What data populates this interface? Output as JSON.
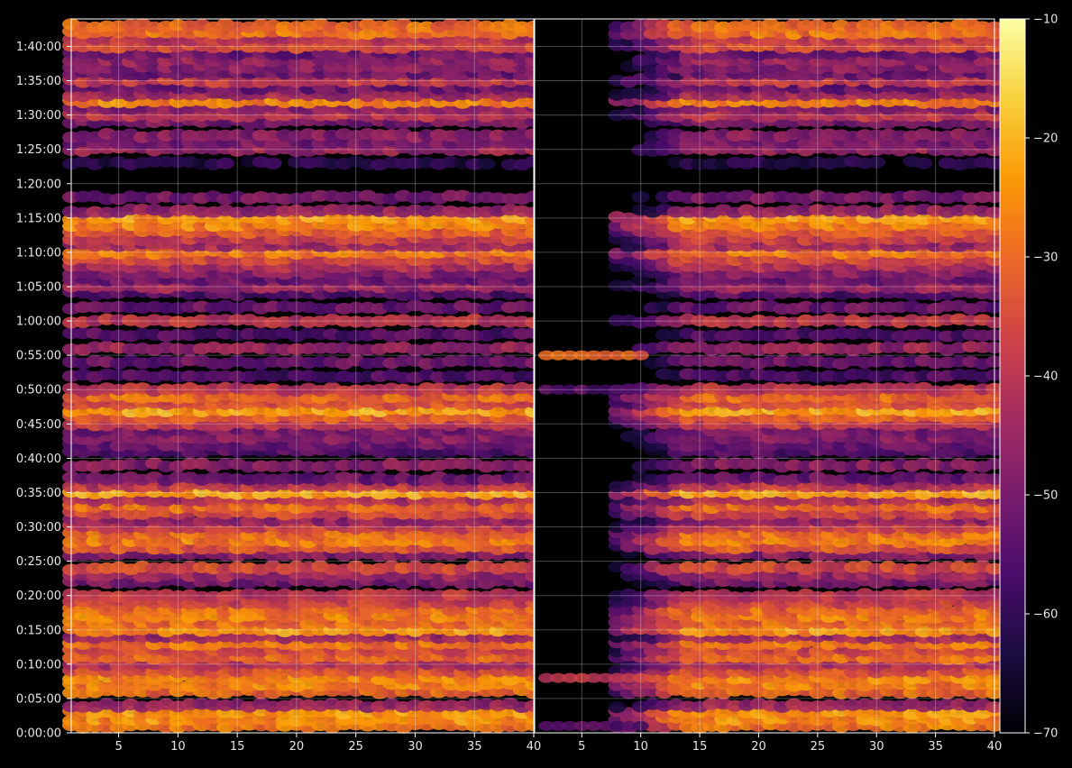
{
  "chart_data": {
    "type": "heatmap",
    "title": "",
    "xlabel": "",
    "ylabel": "",
    "colormap": "inferno",
    "background": "#000000",
    "grid": true,
    "panels": [
      {
        "name": "left",
        "xlim": [
          1,
          40
        ],
        "xticks": [
          "5",
          "10",
          "15",
          "20",
          "25",
          "30",
          "35",
          "40"
        ],
        "xtick_values": [
          5,
          10,
          15,
          20,
          25,
          30,
          35,
          40
        ],
        "active_x_range": [
          1,
          40
        ]
      },
      {
        "name": "right",
        "xlim": [
          1,
          40
        ],
        "xticks": [
          "5",
          "10",
          "15",
          "20",
          "25",
          "30",
          "35",
          "40"
        ],
        "xtick_values": [
          5,
          10,
          15,
          20,
          25,
          30,
          35,
          40
        ],
        "active_x_range": [
          8,
          40
        ]
      }
    ],
    "y": {
      "unit": "elapsed time",
      "range_seconds": [
        0,
        6240
      ],
      "ticks": [
        "0:00:00",
        "0:05:00",
        "0:10:00",
        "0:15:00",
        "0:20:00",
        "0:25:00",
        "0:30:00",
        "0:35:00",
        "0:40:00",
        "0:45:00",
        "0:50:00",
        "0:55:00",
        "1:00:00",
        "1:05:00",
        "1:10:00",
        "1:15:00",
        "1:20:00",
        "1:25:00",
        "1:30:00",
        "1:35:00",
        "1:40:00"
      ],
      "tick_values_seconds": [
        0,
        300,
        600,
        900,
        1200,
        1500,
        1800,
        2100,
        2400,
        2700,
        3000,
        3300,
        3600,
        3900,
        4200,
        4500,
        4800,
        5100,
        5400,
        5700,
        6000
      ]
    },
    "colorbar": {
      "range": [
        -70,
        -10
      ],
      "ticks": [
        "−10",
        "−20",
        "−30",
        "−40",
        "−50",
        "−60",
        "−70"
      ],
      "tick_values": [
        -10,
        -20,
        -30,
        -40,
        -50,
        -60,
        -70
      ],
      "colors": [
        "#000004",
        "#1b0c41",
        "#4a0c6b",
        "#781c6d",
        "#a52c60",
        "#cf4446",
        "#ed6925",
        "#fb9b06",
        "#f7d13d",
        "#fcffa4"
      ]
    },
    "bands": [
      {
        "t": 60,
        "v": -28
      },
      {
        "t": 120,
        "v": -25
      },
      {
        "t": 180,
        "v": -24
      },
      {
        "t": 240,
        "v": -45
      },
      {
        "t": 360,
        "v": -30
      },
      {
        "t": 420,
        "v": -27
      },
      {
        "t": 480,
        "v": -26
      },
      {
        "t": 540,
        "v": -35
      },
      {
        "t": 600,
        "v": -42
      },
      {
        "t": 660,
        "v": -30
      },
      {
        "t": 720,
        "v": -36
      },
      {
        "t": 780,
        "v": -29
      },
      {
        "t": 840,
        "v": -44
      },
      {
        "t": 900,
        "v": -24
      },
      {
        "t": 960,
        "v": -30
      },
      {
        "t": 1020,
        "v": -27
      },
      {
        "t": 1080,
        "v": -30
      },
      {
        "t": 1140,
        "v": -38
      },
      {
        "t": 1200,
        "v": -40
      },
      {
        "t": 1320,
        "v": -50
      },
      {
        "t": 1380,
        "v": -45
      },
      {
        "t": 1440,
        "v": -36
      },
      {
        "t": 1560,
        "v": -48
      },
      {
        "t": 1620,
        "v": -33
      },
      {
        "t": 1680,
        "v": -27
      },
      {
        "t": 1740,
        "v": -30
      },
      {
        "t": 1800,
        "v": -38
      },
      {
        "t": 1860,
        "v": -46
      },
      {
        "t": 1920,
        "v": -36
      },
      {
        "t": 1980,
        "v": -30
      },
      {
        "t": 2040,
        "v": -42
      },
      {
        "t": 2100,
        "v": -22
      },
      {
        "t": 2160,
        "v": -40
      },
      {
        "t": 2220,
        "v": -52
      },
      {
        "t": 2340,
        "v": -48
      },
      {
        "t": 2460,
        "v": -55
      },
      {
        "t": 2520,
        "v": -52
      },
      {
        "t": 2580,
        "v": -48
      },
      {
        "t": 2640,
        "v": -50
      },
      {
        "t": 2700,
        "v": -38
      },
      {
        "t": 2760,
        "v": -32
      },
      {
        "t": 2820,
        "v": -22
      },
      {
        "t": 2880,
        "v": -35
      },
      {
        "t": 2940,
        "v": -30
      },
      {
        "t": 3000,
        "v": -40
      },
      {
        "t": 3120,
        "v": -56
      },
      {
        "t": 3240,
        "v": -52
      },
      {
        "t": 3360,
        "v": -45
      },
      {
        "t": 3480,
        "v": -55
      },
      {
        "t": 3600,
        "v": -40
      },
      {
        "t": 3720,
        "v": -52
      },
      {
        "t": 3840,
        "v": -55
      },
      {
        "t": 3900,
        "v": -45
      },
      {
        "t": 3960,
        "v": -52
      },
      {
        "t": 4020,
        "v": -48
      },
      {
        "t": 4080,
        "v": -42
      },
      {
        "t": 4140,
        "v": -36
      },
      {
        "t": 4200,
        "v": -28
      },
      {
        "t": 4260,
        "v": -44
      },
      {
        "t": 4320,
        "v": -38
      },
      {
        "t": 4380,
        "v": -32
      },
      {
        "t": 4440,
        "v": -26
      },
      {
        "t": 4500,
        "v": -24
      },
      {
        "t": 4560,
        "v": -46
      },
      {
        "t": 4680,
        "v": -50
      },
      {
        "t": 4980,
        "v": -62
      },
      {
        "t": 5100,
        "v": -45
      },
      {
        "t": 5160,
        "v": -50
      },
      {
        "t": 5220,
        "v": -48
      },
      {
        "t": 5340,
        "v": -50
      },
      {
        "t": 5400,
        "v": -40
      },
      {
        "t": 5460,
        "v": -48
      },
      {
        "t": 5520,
        "v": -26
      },
      {
        "t": 5580,
        "v": -45
      },
      {
        "t": 5640,
        "v": -52
      },
      {
        "t": 5700,
        "v": -38
      },
      {
        "t": 5760,
        "v": -52
      },
      {
        "t": 5820,
        "v": -48
      },
      {
        "t": 5880,
        "v": -46
      },
      {
        "t": 5940,
        "v": -52
      },
      {
        "t": 6000,
        "v": -35
      },
      {
        "t": 6060,
        "v": -40
      },
      {
        "t": 6120,
        "v": -28
      },
      {
        "t": 6180,
        "v": -30
      }
    ],
    "early_segment_bands": [
      {
        "t": 480,
        "v": -40
      },
      {
        "t": 3300,
        "v": -30
      },
      {
        "t": 3000,
        "v": -55
      },
      {
        "t": 60,
        "v": -55
      }
    ]
  }
}
